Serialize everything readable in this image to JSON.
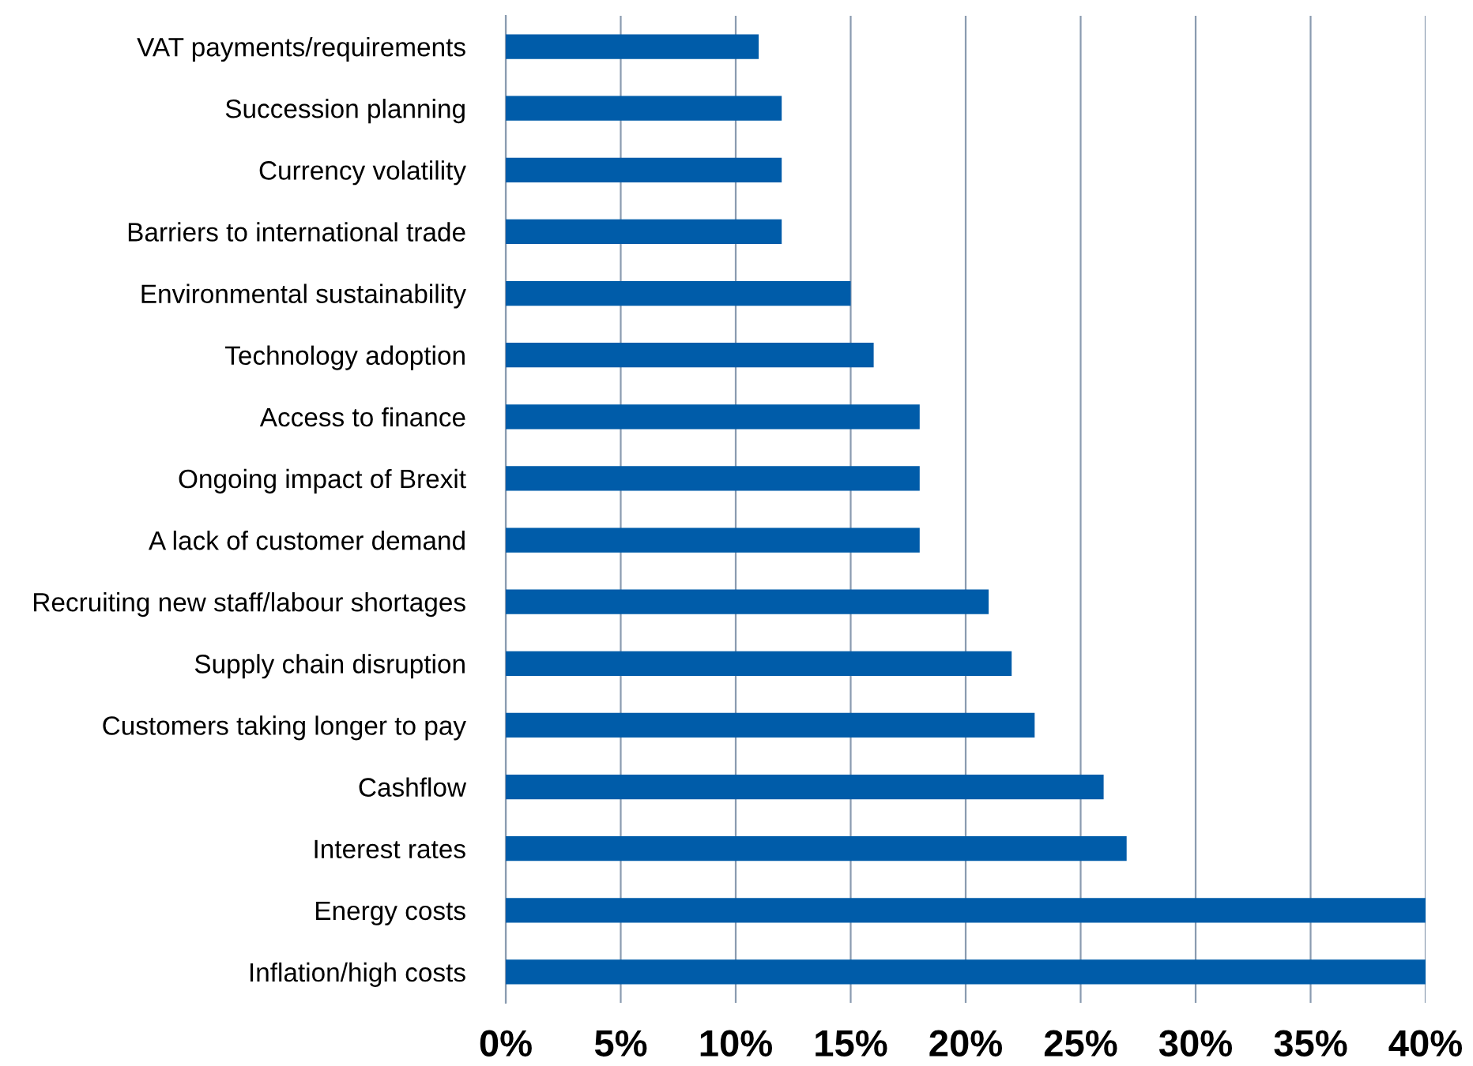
{
  "chart_data": {
    "type": "bar",
    "orientation": "horizontal",
    "categories": [
      "VAT payments/requirements",
      "Succession planning",
      "Currency volatility",
      "Barriers to international trade",
      "Environmental sustainability",
      "Technology adoption",
      "Access to finance",
      "Ongoing impact of Brexit",
      "A lack of customer demand",
      "Recruiting new staff/labour shortages",
      "Supply chain disruption",
      "Customers taking longer to pay",
      "Cashflow",
      "Interest rates",
      "Energy costs",
      "Inflation/high costs"
    ],
    "values": [
      11,
      12,
      12,
      12,
      15,
      16,
      18,
      18,
      18,
      21,
      22,
      23,
      26,
      27,
      40,
      40
    ],
    "color": "#005ca9",
    "xlim": [
      0,
      40
    ],
    "xticks": [
      {
        "value": 0,
        "label": "0%"
      },
      {
        "value": 5,
        "label": "5%"
      },
      {
        "value": 10,
        "label": "10%"
      },
      {
        "value": 15,
        "label": "15%"
      },
      {
        "value": 20,
        "label": "20%"
      },
      {
        "value": 25,
        "label": "25%"
      },
      {
        "value": 30,
        "label": "30%"
      },
      {
        "value": 35,
        "label": "35%"
      },
      {
        "value": 40,
        "label": "40%"
      }
    ],
    "grid": "x"
  }
}
